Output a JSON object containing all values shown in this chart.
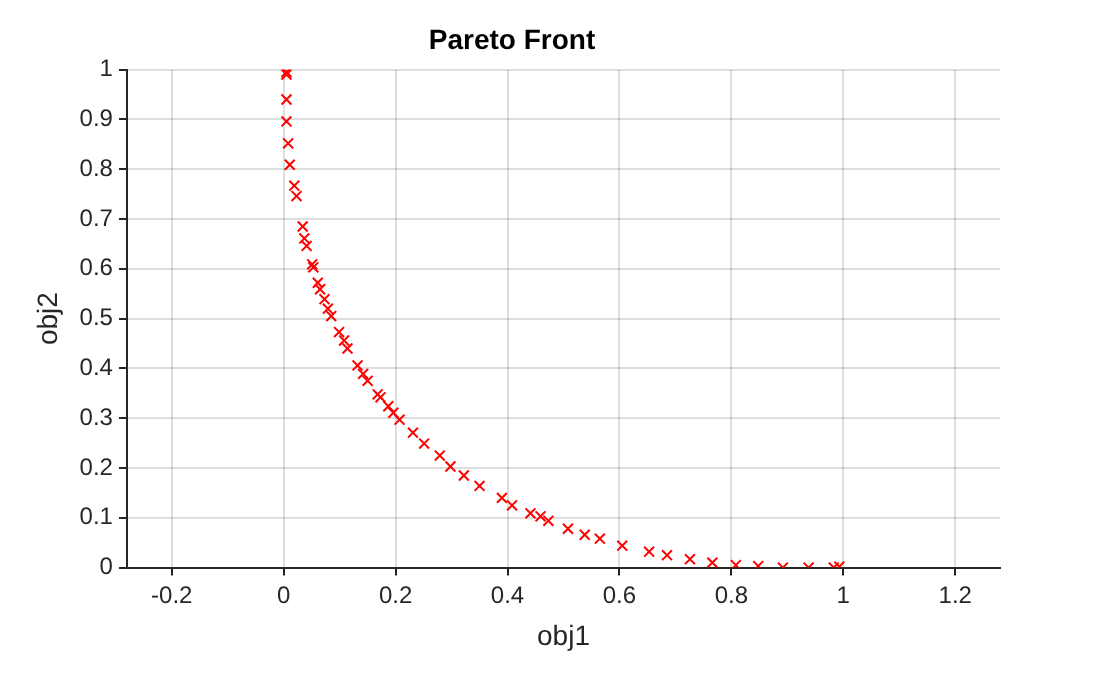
{
  "chart_data": {
    "type": "scatter",
    "title": "Pareto Front",
    "xlabel": "obj1",
    "ylabel": "obj2",
    "marker": "cross",
    "grid": true,
    "legend": false,
    "xlim": [
      -0.28,
      1.28
    ],
    "xticks": [
      -0.2,
      0,
      0.2,
      0.4,
      0.6,
      0.8,
      1,
      1.2
    ],
    "ylim": [
      0,
      1
    ],
    "yticks": [
      0,
      0.1,
      0.2,
      0.3,
      0.4,
      0.5,
      0.6,
      0.7,
      0.8,
      0.9,
      1
    ],
    "series": [
      {
        "color": "#ff0000",
        "x": [
          0.005,
          0.005,
          0.005,
          0.005,
          0.008,
          0.011,
          0.019,
          0.023,
          0.034,
          0.037,
          0.041,
          0.051,
          0.053,
          0.061,
          0.065,
          0.073,
          0.079,
          0.085,
          0.099,
          0.108,
          0.114,
          0.132,
          0.142,
          0.15,
          0.168,
          0.173,
          0.187,
          0.196,
          0.207,
          0.231,
          0.251,
          0.279,
          0.298,
          0.322,
          0.35,
          0.39,
          0.408,
          0.441,
          0.459,
          0.473,
          0.508,
          0.538,
          0.565,
          0.605,
          0.653,
          0.685,
          0.726,
          0.766,
          0.808,
          0.848,
          0.892,
          0.938,
          0.983,
          0.993
        ],
        "values": [
          0.995,
          0.99,
          0.94,
          0.896,
          0.852,
          0.809,
          0.767,
          0.746,
          0.685,
          0.661,
          0.646,
          0.609,
          0.603,
          0.572,
          0.559,
          0.539,
          0.52,
          0.505,
          0.473,
          0.456,
          0.44,
          0.406,
          0.389,
          0.375,
          0.348,
          0.342,
          0.324,
          0.311,
          0.297,
          0.271,
          0.249,
          0.225,
          0.203,
          0.185,
          0.164,
          0.14,
          0.125,
          0.109,
          0.103,
          0.094,
          0.078,
          0.066,
          0.058,
          0.044,
          0.032,
          0.025,
          0.017,
          0.01,
          0.005,
          0.003,
          0,
          0,
          0,
          0.002
        ]
      }
    ]
  }
}
